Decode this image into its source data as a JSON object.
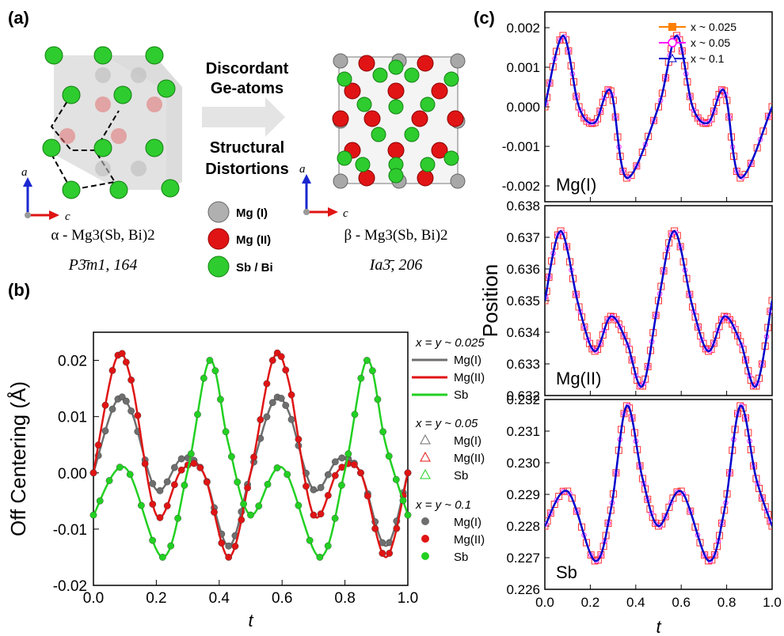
{
  "panels": {
    "a": {
      "label": "(a)",
      "arrow_top": "Discordant Ge-atoms",
      "arrow_top_l1": "Discordant",
      "arrow_top_l2": "Ge-atoms",
      "arrow_bottom_l1": "Structural",
      "arrow_bottom_l2": "Distortions",
      "axis_a": "a",
      "axis_c": "c",
      "alpha_name": "α - Mg3(Sb, Bi)2",
      "alpha_group": "P3̄m1, 164",
      "beta_name": "β - Mg3(Sb, Bi)2",
      "beta_group": "Ia3̄, 206",
      "legend": [
        {
          "label": "Mg (I)",
          "color": "#a8a8a8"
        },
        {
          "label": "Mg (II)",
          "color": "#e01010"
        },
        {
          "label": "Sb / Bi",
          "color": "#2ecc2e"
        }
      ]
    },
    "b": {
      "label": "(b)"
    },
    "c": {
      "label": "(c)"
    }
  },
  "colors": {
    "mg1": "#6e6e6e",
    "mg2": "#e01414",
    "sb": "#22d022",
    "c_025": "#ff7f00",
    "c_05": "#ff00ff",
    "c_1": "#0000cc",
    "c_025_open": "#ff3030"
  },
  "chart_data": [
    {
      "type": "line",
      "panel": "b",
      "title": "",
      "xlabel": "t",
      "ylabel": "Off Centering (Å)",
      "xlim": [
        0.0,
        1.0
      ],
      "ylim": [
        -0.02,
        0.025
      ],
      "xticks": [
        "0.0",
        "0.2",
        "0.4",
        "0.6",
        "0.8",
        "1.0"
      ],
      "yticks": [
        "-0.02",
        "-0.01",
        "0.00",
        "0.01",
        "0.02"
      ],
      "legend_groups": [
        {
          "title": "x = y ~ 0.025",
          "style": "line",
          "entries": [
            "Mg(I)",
            "Mg(II)",
            "Sb"
          ]
        },
        {
          "title": "x = y ~ 0.05",
          "style": "open-triangle",
          "entries": [
            "Mg(I)",
            "Mg(II)",
            "Sb"
          ]
        },
        {
          "title": "x = y ~ 0.1",
          "style": "filled-circle",
          "entries": [
            "Mg(I)",
            "Mg(II)",
            "Sb"
          ]
        }
      ],
      "series": [
        {
          "name": "Mg(I)",
          "color": "#6e6e6e",
          "x": [
            0.0,
            0.07,
            0.12,
            0.2,
            0.28,
            0.35,
            0.43,
            0.5,
            0.57,
            0.62,
            0.7,
            0.78,
            0.85,
            0.93,
            1.0
          ],
          "y": [
            0.0,
            0.0125,
            0.011,
            -0.003,
            0.0025,
            0.0,
            -0.013,
            0.0,
            0.0125,
            0.011,
            -0.003,
            0.0025,
            0.0,
            -0.013,
            0.0
          ]
        },
        {
          "name": "Mg(II)",
          "color": "#e01414",
          "x": [
            0.0,
            0.07,
            0.12,
            0.2,
            0.28,
            0.35,
            0.43,
            0.5,
            0.57,
            0.62,
            0.7,
            0.78,
            0.85,
            0.93,
            1.0
          ],
          "y": [
            0.0,
            0.02,
            0.0165,
            -0.0075,
            0.0005,
            0.0,
            -0.015,
            0.0,
            0.02,
            0.0165,
            -0.0075,
            0.0005,
            0.0,
            -0.015,
            0.0
          ]
        },
        {
          "name": "Sb",
          "color": "#22d022",
          "x": [
            0.0,
            0.1,
            0.22,
            0.3,
            0.37,
            0.43,
            0.5,
            0.6,
            0.72,
            0.8,
            0.87,
            0.93,
            1.0
          ],
          "y": [
            -0.0075,
            0.001,
            -0.015,
            0.0005,
            0.02,
            0.005,
            -0.0075,
            0.001,
            -0.015,
            0.0005,
            0.02,
            0.005,
            -0.0075
          ]
        }
      ]
    },
    {
      "type": "line",
      "panel": "c-top",
      "inset_label": "Mg(I)",
      "ylabel": "Position",
      "xlim": [
        0.0,
        1.0
      ],
      "ylim": [
        -0.0024,
        0.0024
      ],
      "yticks": [
        "0.002",
        "0.001",
        "0.000",
        "-0.001",
        "-0.002"
      ],
      "legend": [
        "x ~ 0.025",
        "x ~ 0.05",
        "x ~ 0.1"
      ],
      "series": [
        {
          "name": "x ~ 0.1",
          "x": [
            0.0,
            0.08,
            0.15,
            0.22,
            0.29,
            0.36,
            0.5,
            0.58,
            0.65,
            0.72,
            0.79,
            0.86,
            1.0
          ],
          "y": [
            0.0,
            0.0018,
            0.0,
            -0.0004,
            0.0004,
            -0.0018,
            0.0,
            0.0018,
            0.0,
            -0.0004,
            0.0004,
            -0.0018,
            0.0
          ]
        }
      ]
    },
    {
      "type": "line",
      "panel": "c-middle",
      "inset_label": "Mg(II)",
      "xlim": [
        0.0,
        1.0
      ],
      "ylim": [
        0.632,
        0.638
      ],
      "yticks": [
        "0.638",
        "0.637",
        "0.636",
        "0.635",
        "0.634",
        "0.633",
        "0.632"
      ],
      "series": [
        {
          "name": "x ~ 0.1",
          "x": [
            0.0,
            0.07,
            0.15,
            0.22,
            0.29,
            0.36,
            0.43,
            0.5,
            0.57,
            0.65,
            0.72,
            0.79,
            0.86,
            0.93,
            1.0
          ],
          "y": [
            0.635,
            0.6372,
            0.6348,
            0.6334,
            0.6345,
            0.6337,
            0.6323,
            0.635,
            0.6372,
            0.6348,
            0.6334,
            0.6345,
            0.6337,
            0.6323,
            0.635
          ]
        }
      ]
    },
    {
      "type": "line",
      "panel": "c-bottom",
      "inset_label": "Sb",
      "xlabel": "t",
      "xlim": [
        0.0,
        1.0
      ],
      "ylim": [
        0.226,
        0.232
      ],
      "xticks": [
        "0.0",
        "0.2",
        "0.4",
        "0.6",
        "0.8",
        "1.0"
      ],
      "yticks": [
        "0.232",
        "0.231",
        "0.230",
        "0.229",
        "0.228",
        "0.227",
        "0.226"
      ],
      "series": [
        {
          "name": "x ~ 0.1",
          "x": [
            0.0,
            0.1,
            0.22,
            0.29,
            0.36,
            0.43,
            0.5,
            0.6,
            0.72,
            0.79,
            0.86,
            0.93,
            1.0
          ],
          "y": [
            0.228,
            0.2291,
            0.2269,
            0.2285,
            0.2318,
            0.2295,
            0.228,
            0.2291,
            0.2269,
            0.2285,
            0.2318,
            0.2295,
            0.228
          ]
        }
      ]
    }
  ]
}
